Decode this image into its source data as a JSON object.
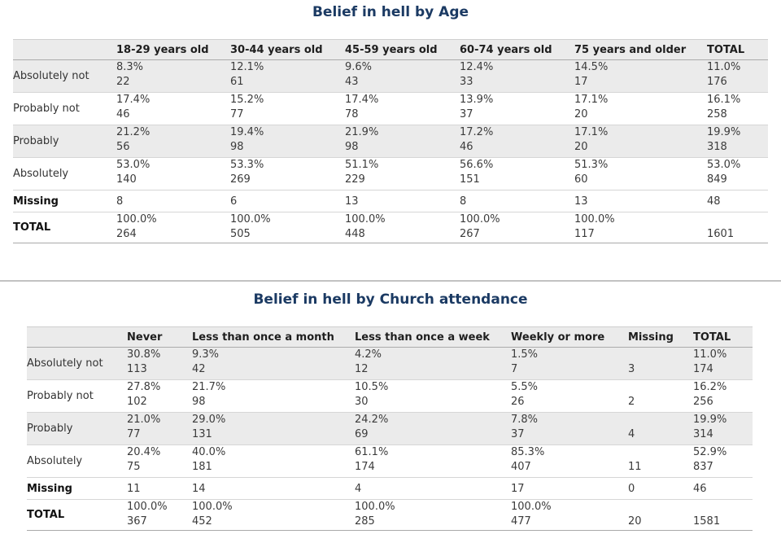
{
  "page": {
    "title_color": "#1b3a63",
    "stripe_color": "#ebebeb",
    "border_color": "#d6d6d6"
  },
  "tables": [
    {
      "title": "Belief in hell by Age",
      "columns": [
        "",
        "18-29 years old",
        "30-44 years old",
        "45-59 years old",
        "60-74 years old",
        "75 years and older",
        "TOTAL"
      ],
      "rows": [
        {
          "label": "Absolutely not",
          "bold": false,
          "shaded": true,
          "single": false,
          "cells": [
            {
              "pct": "8.3%",
              "n": "22"
            },
            {
              "pct": "12.1%",
              "n": "61"
            },
            {
              "pct": "9.6%",
              "n": "43"
            },
            {
              "pct": "12.4%",
              "n": "33"
            },
            {
              "pct": "14.5%",
              "n": "17"
            },
            {
              "pct": "11.0%",
              "n": "176"
            }
          ]
        },
        {
          "label": "Probably not",
          "bold": false,
          "shaded": false,
          "single": false,
          "cells": [
            {
              "pct": "17.4%",
              "n": "46"
            },
            {
              "pct": "15.2%",
              "n": "77"
            },
            {
              "pct": "17.4%",
              "n": "78"
            },
            {
              "pct": "13.9%",
              "n": "37"
            },
            {
              "pct": "17.1%",
              "n": "20"
            },
            {
              "pct": "16.1%",
              "n": "258"
            }
          ]
        },
        {
          "label": "Probably",
          "bold": false,
          "shaded": true,
          "single": false,
          "cells": [
            {
              "pct": "21.2%",
              "n": "56"
            },
            {
              "pct": "19.4%",
              "n": "98"
            },
            {
              "pct": "21.9%",
              "n": "98"
            },
            {
              "pct": "17.2%",
              "n": "46"
            },
            {
              "pct": "17.1%",
              "n": "20"
            },
            {
              "pct": "19.9%",
              "n": "318"
            }
          ]
        },
        {
          "label": "Absolutely",
          "bold": false,
          "shaded": false,
          "single": false,
          "cells": [
            {
              "pct": "53.0%",
              "n": "140"
            },
            {
              "pct": "53.3%",
              "n": "269"
            },
            {
              "pct": "51.1%",
              "n": "229"
            },
            {
              "pct": "56.6%",
              "n": "151"
            },
            {
              "pct": "51.3%",
              "n": "60"
            },
            {
              "pct": "53.0%",
              "n": "849"
            }
          ]
        },
        {
          "label": "Missing",
          "bold": true,
          "shaded": false,
          "single": true,
          "cells": [
            "8",
            "6",
            "13",
            "8",
            "13",
            "48"
          ]
        },
        {
          "label": "TOTAL",
          "bold": true,
          "shaded": false,
          "single": false,
          "total": true,
          "cells": [
            {
              "pct": "100.0%",
              "n": "264"
            },
            {
              "pct": "100.0%",
              "n": "505"
            },
            {
              "pct": "100.0%",
              "n": "448"
            },
            {
              "pct": "100.0%",
              "n": "267"
            },
            {
              "pct": "100.0%",
              "n": "117"
            },
            {
              "pct": "",
              "n": "1601"
            }
          ]
        }
      ]
    },
    {
      "title": "Belief in hell by Church attendance",
      "columns": [
        "",
        "Never",
        "Less than once a month",
        "Less than once a week",
        "Weekly or more",
        "Missing",
        "TOTAL"
      ],
      "rows": [
        {
          "label": "Absolutely not",
          "bold": false,
          "shaded": true,
          "single": false,
          "cells": [
            {
              "pct": "30.8%",
              "n": "113"
            },
            {
              "pct": "9.3%",
              "n": "42"
            },
            {
              "pct": "4.2%",
              "n": "12"
            },
            {
              "pct": "1.5%",
              "n": "7"
            },
            {
              "pct": "",
              "n": "3"
            },
            {
              "pct": "11.0%",
              "n": "174"
            }
          ]
        },
        {
          "label": "Probably not",
          "bold": false,
          "shaded": false,
          "single": false,
          "cells": [
            {
              "pct": "27.8%",
              "n": "102"
            },
            {
              "pct": "21.7%",
              "n": "98"
            },
            {
              "pct": "10.5%",
              "n": "30"
            },
            {
              "pct": "5.5%",
              "n": "26"
            },
            {
              "pct": "",
              "n": "2"
            },
            {
              "pct": "16.2%",
              "n": "256"
            }
          ]
        },
        {
          "label": "Probably",
          "bold": false,
          "shaded": true,
          "single": false,
          "cells": [
            {
              "pct": "21.0%",
              "n": "77"
            },
            {
              "pct": "29.0%",
              "n": "131"
            },
            {
              "pct": "24.2%",
              "n": "69"
            },
            {
              "pct": "7.8%",
              "n": "37"
            },
            {
              "pct": "",
              "n": "4"
            },
            {
              "pct": "19.9%",
              "n": "314"
            }
          ]
        },
        {
          "label": "Absolutely",
          "bold": false,
          "shaded": false,
          "single": false,
          "cells": [
            {
              "pct": "20.4%",
              "n": "75"
            },
            {
              "pct": "40.0%",
              "n": "181"
            },
            {
              "pct": "61.1%",
              "n": "174"
            },
            {
              "pct": "85.3%",
              "n": "407"
            },
            {
              "pct": "",
              "n": "11"
            },
            {
              "pct": "52.9%",
              "n": "837"
            }
          ]
        },
        {
          "label": "Missing",
          "bold": true,
          "shaded": false,
          "single": true,
          "cells": [
            "11",
            "14",
            "4",
            "17",
            "0",
            "46"
          ]
        },
        {
          "label": "TOTAL",
          "bold": true,
          "shaded": false,
          "single": false,
          "total": true,
          "cells": [
            {
              "pct": "100.0%",
              "n": "367"
            },
            {
              "pct": "100.0%",
              "n": "452"
            },
            {
              "pct": "100.0%",
              "n": "285"
            },
            {
              "pct": "100.0%",
              "n": "477"
            },
            {
              "pct": "",
              "n": "20"
            },
            {
              "pct": "",
              "n": "1581"
            }
          ]
        }
      ]
    }
  ]
}
